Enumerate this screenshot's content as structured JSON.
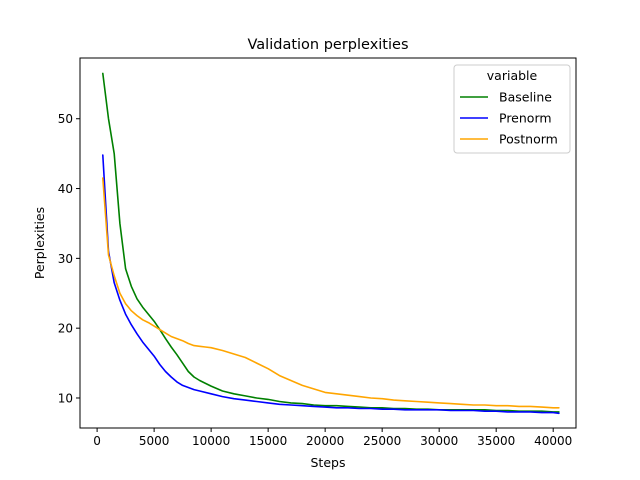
{
  "chart_data": {
    "type": "line",
    "title": "Validation perplexities",
    "xlabel": "Steps",
    "ylabel": "Perplexities",
    "xlim": [
      -1500,
      42000
    ],
    "ylim": [
      5.7,
      58.7
    ],
    "xticks": [
      0,
      5000,
      10000,
      15000,
      20000,
      25000,
      30000,
      35000,
      40000
    ],
    "yticks": [
      10,
      20,
      30,
      40,
      50
    ],
    "grid": false,
    "legend": {
      "title": "variable",
      "placement": "top-right"
    },
    "series": [
      {
        "name": "Baseline",
        "color": "#008000",
        "x": [
          500,
          1000,
          1500,
          2000,
          2500,
          3000,
          3500,
          4000,
          4500,
          5000,
          5500,
          6000,
          6500,
          7000,
          7500,
          8000,
          8500,
          9000,
          10000,
          11000,
          12000,
          13000,
          14000,
          15000,
          16000,
          17000,
          18000,
          19000,
          20000,
          21000,
          22000,
          23000,
          24000,
          25000,
          26000,
          27000,
          28000,
          29000,
          30000,
          31000,
          32000,
          33000,
          34000,
          35000,
          36000,
          37000,
          38000,
          39000,
          40000,
          40500
        ],
        "y": [
          56.5,
          50,
          45,
          35,
          28.5,
          26,
          24.2,
          23,
          22,
          21,
          19.8,
          18.5,
          17.3,
          16.2,
          15,
          13.8,
          13,
          12.5,
          11.7,
          11,
          10.6,
          10.3,
          10,
          9.8,
          9.5,
          9.3,
          9.2,
          9.0,
          8.9,
          8.9,
          8.8,
          8.7,
          8.6,
          8.6,
          8.5,
          8.5,
          8.4,
          8.4,
          8.3,
          8.3,
          8.3,
          8.3,
          8.3,
          8.2,
          8.2,
          8.1,
          8.1,
          8.1,
          8.0,
          8.0
        ]
      },
      {
        "name": "Prenorm",
        "color": "#0000ff",
        "x": [
          500,
          1000,
          1500,
          2000,
          2500,
          3000,
          3500,
          4000,
          4500,
          5000,
          5500,
          6000,
          6500,
          7000,
          7500,
          8000,
          8500,
          9000,
          10000,
          11000,
          12000,
          13000,
          14000,
          15000,
          16000,
          17000,
          18000,
          19000,
          20000,
          21000,
          22000,
          23000,
          24000,
          25000,
          26000,
          27000,
          28000,
          29000,
          30000,
          31000,
          32000,
          33000,
          34000,
          35000,
          36000,
          37000,
          38000,
          39000,
          40000,
          40500
        ],
        "y": [
          44.8,
          31,
          26.5,
          24,
          22,
          20.5,
          19.2,
          18,
          17,
          16,
          14.8,
          13.8,
          13,
          12.3,
          11.8,
          11.5,
          11.2,
          11,
          10.6,
          10.2,
          9.9,
          9.7,
          9.5,
          9.3,
          9.1,
          9.0,
          8.9,
          8.8,
          8.7,
          8.6,
          8.6,
          8.5,
          8.5,
          8.4,
          8.4,
          8.3,
          8.3,
          8.3,
          8.3,
          8.2,
          8.2,
          8.2,
          8.1,
          8.1,
          8.0,
          8.0,
          8.0,
          7.9,
          7.9,
          7.8
        ]
      },
      {
        "name": "Postnorm",
        "color": "#ffa500",
        "x": [
          500,
          1000,
          1500,
          2000,
          2500,
          3000,
          3500,
          4000,
          4500,
          5000,
          5500,
          6000,
          6500,
          7000,
          7500,
          8000,
          8500,
          9000,
          9500,
          10000,
          11000,
          12000,
          13000,
          14000,
          15000,
          16000,
          17000,
          18000,
          19000,
          20000,
          21000,
          22000,
          23000,
          24000,
          25000,
          26000,
          27000,
          28000,
          29000,
          30000,
          31000,
          32000,
          33000,
          34000,
          35000,
          36000,
          37000,
          38000,
          39000,
          40000,
          40500
        ],
        "y": [
          41.5,
          30.5,
          27.5,
          25,
          23.5,
          22.5,
          21.8,
          21.2,
          20.8,
          20.3,
          19.8,
          19.3,
          18.8,
          18.5,
          18.2,
          17.8,
          17.5,
          17.4,
          17.3,
          17.2,
          16.8,
          16.3,
          15.8,
          15,
          14.2,
          13.2,
          12.5,
          11.8,
          11.3,
          10.8,
          10.6,
          10.4,
          10.2,
          10.0,
          9.9,
          9.7,
          9.6,
          9.5,
          9.4,
          9.3,
          9.2,
          9.1,
          9.0,
          9.0,
          8.9,
          8.9,
          8.8,
          8.8,
          8.7,
          8.6,
          8.6
        ]
      }
    ]
  }
}
